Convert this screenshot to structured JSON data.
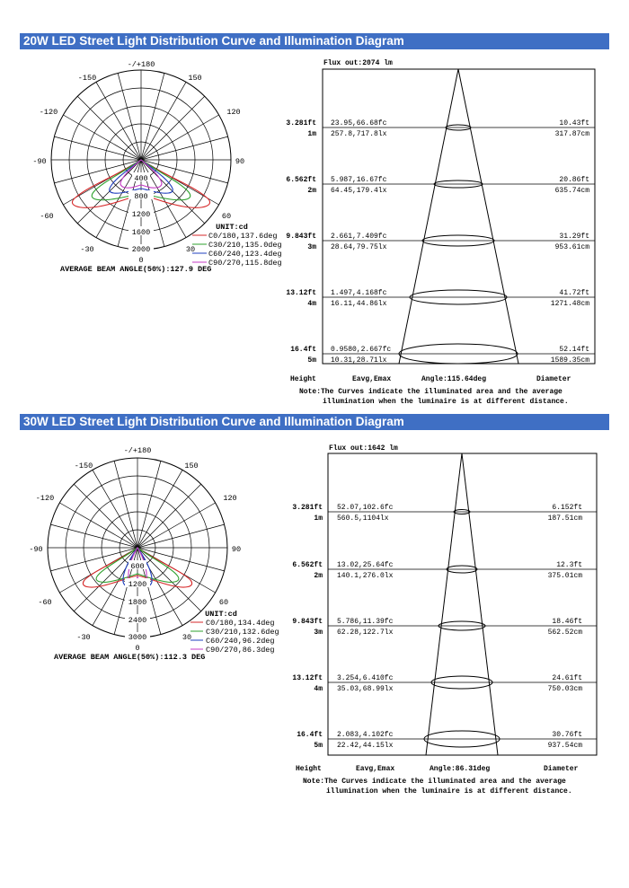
{
  "sections": [
    {
      "title": "20W LED Street Light Distribution Curve and Illumination Diagram",
      "polar": {
        "angle_labels": [
          "-/+180",
          "-150",
          "150",
          "-120",
          "120",
          "-90",
          "90",
          "-60",
          "60",
          "-30",
          "30",
          "0"
        ],
        "intensity_labels": [
          "400",
          "800",
          "1200",
          "1600",
          "2000"
        ],
        "unit_label": "UNIT:cd",
        "legend": [
          {
            "label": "C0/180,137.6deg",
            "color": "#d62728"
          },
          {
            "label": "C30/210,135.0deg",
            "color": "#2ca02c"
          },
          {
            "label": "C60/240,123.4deg",
            "color": "#1f3fbf"
          },
          {
            "label": "C90/270,115.8deg",
            "color": "#c43bc4"
          }
        ],
        "beam_angle": "AVERAGE BEAM ANGLE(50%):127.9 DEG"
      },
      "illum": {
        "flux": "Flux out:2074 lm",
        "rows": [
          {
            "height_ft": "3.281ft",
            "height_m": "1m",
            "e_fc": "23.95,66.68fc",
            "e_lx": "257.8,717.8lx",
            "d_ft": "10.43ft",
            "d_cm": "317.87cm"
          },
          {
            "height_ft": "6.562ft",
            "height_m": "2m",
            "e_fc": "5.987,16.67fc",
            "e_lx": "64.45,179.4lx",
            "d_ft": "20.86ft",
            "d_cm": "635.74cm"
          },
          {
            "height_ft": "9.843ft",
            "height_m": "3m",
            "e_fc": "2.661,7.409fc",
            "e_lx": "28.64,79.75lx",
            "d_ft": "31.29ft",
            "d_cm": "953.61cm"
          },
          {
            "height_ft": "13.12ft",
            "height_m": "4m",
            "e_fc": "1.497,4.168fc",
            "e_lx": "16.11,44.86lx",
            "d_ft": "41.72ft",
            "d_cm": "1271.48cm"
          },
          {
            "height_ft": "16.4ft",
            "height_m": "5m",
            "e_fc": "0.9580,2.667fc",
            "e_lx": "10.31,28.71lx",
            "d_ft": "52.14ft",
            "d_cm": "1589.35cm"
          }
        ],
        "footer": {
          "height": "Height",
          "eavg": "Eavg,Emax",
          "angle": "Angle:115.64deg",
          "diameter": "Diameter"
        },
        "note1": "Note:The Curves indicate the illuminated area and the average",
        "note2": "illumination when the luminaire is at different distance."
      }
    },
    {
      "title": "30W LED Street Light Distribution Curve and Illumination Diagram",
      "polar": {
        "angle_labels": [
          "-/+180",
          "-150",
          "150",
          "-120",
          "120",
          "-90",
          "90",
          "-60",
          "60",
          "-30",
          "30",
          "0"
        ],
        "intensity_labels": [
          "600",
          "1200",
          "1800",
          "2400",
          "3000"
        ],
        "unit_label": "UNIT:cd",
        "legend": [
          {
            "label": "C0/180,134.4deg",
            "color": "#d62728"
          },
          {
            "label": "C30/210,132.6deg",
            "color": "#2ca02c"
          },
          {
            "label": "C60/240,96.2deg",
            "color": "#1f3fbf"
          },
          {
            "label": "C90/270,86.3deg",
            "color": "#c43bc4"
          }
        ],
        "beam_angle": "AVERAGE BEAM ANGLE(50%):112.3 DEG"
      },
      "illum": {
        "flux": "Flux out:1642 lm",
        "rows": [
          {
            "height_ft": "3.281ft",
            "height_m": "1m",
            "e_fc": "52.07,102.6fc",
            "e_lx": "560.5,1104lx",
            "d_ft": "6.152ft",
            "d_cm": "187.51cm"
          },
          {
            "height_ft": "6.562ft",
            "height_m": "2m",
            "e_fc": "13.02,25.64fc",
            "e_lx": "140.1,276.0lx",
            "d_ft": "12.3ft",
            "d_cm": "375.01cm"
          },
          {
            "height_ft": "9.843ft",
            "height_m": "3m",
            "e_fc": "5.786,11.39fc",
            "e_lx": "62.28,122.7lx",
            "d_ft": "18.46ft",
            "d_cm": "562.52cm"
          },
          {
            "height_ft": "13.12ft",
            "height_m": "4m",
            "e_fc": "3.254,6.410fc",
            "e_lx": "35.03,68.99lx",
            "d_ft": "24.61ft",
            "d_cm": "750.03cm"
          },
          {
            "height_ft": "16.4ft",
            "height_m": "5m",
            "e_fc": "2.083,4.102fc",
            "e_lx": "22.42,44.15lx",
            "d_ft": "30.76ft",
            "d_cm": "937.54cm"
          }
        ],
        "footer": {
          "height": "Height",
          "eavg": "Eavg,Emax",
          "angle": "Angle:86.31deg",
          "diameter": "Diameter"
        },
        "note1": "Note:The Curves indicate the illuminated area and the average",
        "note2": "illumination when the luminaire is at different distance."
      }
    }
  ]
}
